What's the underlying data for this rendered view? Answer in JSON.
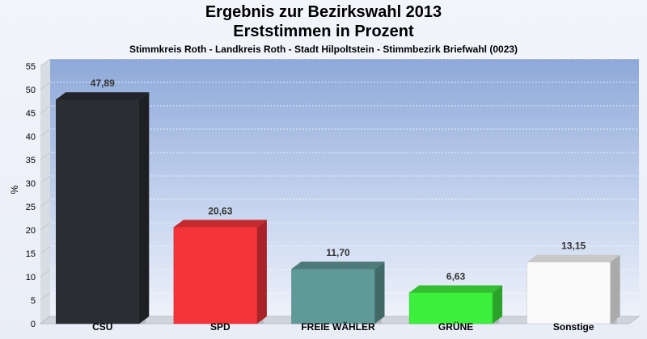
{
  "header": {
    "title": "Ergebnis zur Bezirkswahl 2013",
    "subtitle": "Erststimmen in Prozent",
    "caption": "Stimmkreis Roth - Landkreis Roth - Stadt Hilpoltstein - Stimmbezirk Briefwahl (0023)"
  },
  "chart_data": {
    "type": "bar",
    "title": "Ergebnis zur Bezirkswahl 2013",
    "subtitle": "Erststimmen in Prozent",
    "caption": "Stimmkreis Roth - Landkreis Roth - Stadt Hilpoltstein - Stimmbezirk Briefwahl (0023)",
    "xlabel": "",
    "ylabel": "%",
    "ylim": [
      0,
      55
    ],
    "yticks": [
      0,
      5,
      10,
      15,
      20,
      25,
      30,
      35,
      40,
      45,
      50,
      55
    ],
    "grid": true,
    "legend": "none",
    "categories": [
      "CSU",
      "SPD",
      "FREIE WÄHLER",
      "GRÜNE",
      "Sonstige"
    ],
    "values": [
      47.89,
      20.63,
      11.7,
      6.63,
      13.15
    ],
    "value_labels": [
      "47,89",
      "20,63",
      "11,70",
      "6,63",
      "13,15"
    ],
    "colors": [
      "#2b2d33",
      "#f5343a",
      "#5f9a99",
      "#3ef03e",
      "#fafafa"
    ]
  }
}
